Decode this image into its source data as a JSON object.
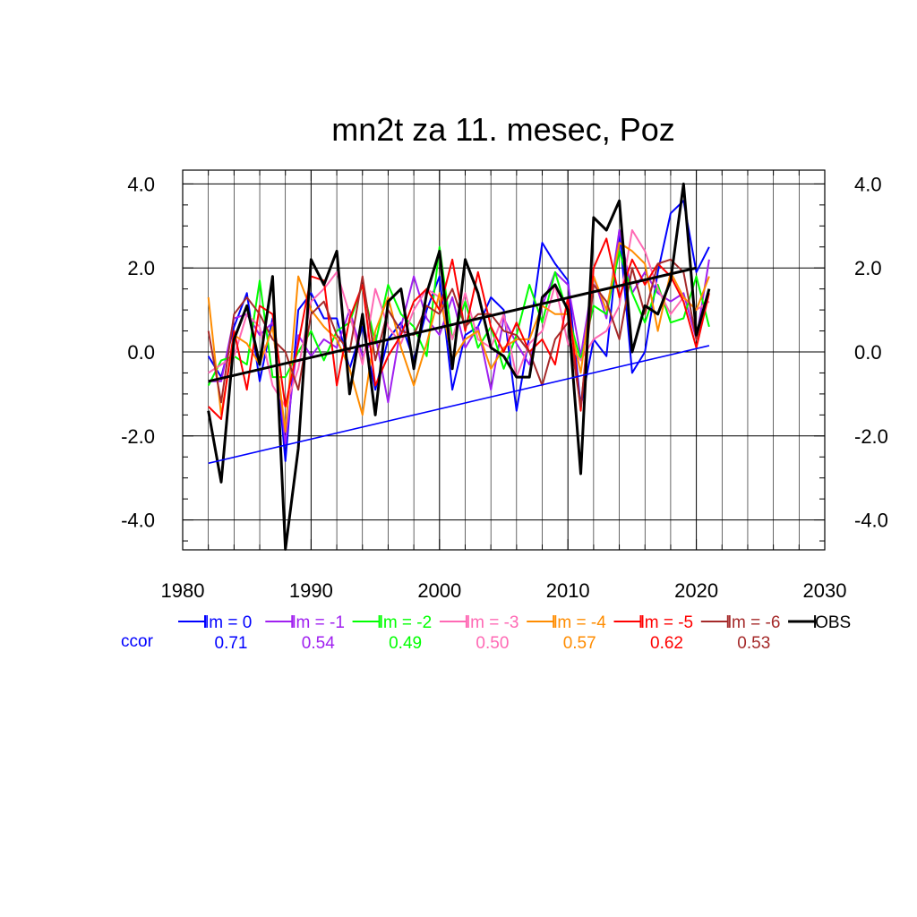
{
  "chart_data": {
    "type": "line",
    "title": "mn2t za 11. mesec, Poz",
    "xlabel": "",
    "ylabel": "",
    "xlim": [
      1980,
      2030
    ],
    "ylim": [
      -4.7,
      4.2
    ],
    "x_ticks": [
      "1980",
      "1990",
      "2000",
      "2010",
      "2020",
      "2030"
    ],
    "y_ticks": [
      "4.0",
      "2.0",
      "0.0",
      "-2.0",
      "-4.0"
    ],
    "y_tick_values": [
      4,
      2,
      0,
      -2,
      -4
    ],
    "grid": true,
    "legend_position": "bottom",
    "x": [
      1982,
      1983,
      1984,
      1985,
      1986,
      1987,
      1988,
      1989,
      1990,
      1991,
      1992,
      1993,
      1994,
      1995,
      1996,
      1997,
      1998,
      1999,
      2000,
      2001,
      2002,
      2003,
      2004,
      2005,
      2006,
      2007,
      2008,
      2009,
      2010,
      2011,
      2012,
      2013,
      2014,
      2015,
      2016,
      2017,
      2018,
      2019,
      2020,
      2021
    ],
    "series": [
      {
        "name": "lm = 0",
        "color": "#0000ff",
        "ccor": "0.71",
        "values": [
          -0.1,
          -0.6,
          0.6,
          1.4,
          -0.7,
          0.8,
          -2.6,
          1.0,
          1.4,
          0.8,
          0.8,
          -0.4,
          0.6,
          -0.9,
          0.3,
          0.7,
          -0.2,
          1.0,
          1.8,
          -0.9,
          0.4,
          0.6,
          1.3,
          1.0,
          -1.4,
          0.4,
          2.6,
          2.1,
          1.7,
          -1.3,
          0.3,
          -0.1,
          2.9,
          -0.5,
          0.0,
          1.9,
          3.3,
          3.6,
          1.9,
          2.5
        ]
      },
      {
        "name": "lm = -1",
        "color": "#a020f0",
        "ccor": "0.54",
        "values": [
          -0.7,
          -0.7,
          0.8,
          0.9,
          0.4,
          0.7,
          -2.2,
          0.4,
          -0.1,
          0.3,
          0.1,
          1.0,
          -0.1,
          0.4,
          -1.2,
          0.6,
          1.8,
          0.8,
          0.4,
          1.3,
          0.1,
          0.6,
          -0.9,
          0.8,
          0.2,
          -0.3,
          1.1,
          1.9,
          1.6,
          -0.1,
          1.8,
          0.8,
          2.9,
          1.4,
          1.9,
          1.4,
          1.2,
          1.4,
          0.3,
          2.2
        ]
      },
      {
        "name": "lm = -2",
        "color": "#00ff00",
        "ccor": "0.49",
        "values": [
          -0.8,
          -0.2,
          -0.1,
          -0.3,
          1.7,
          -0.6,
          -0.6,
          0.0,
          0.5,
          -0.2,
          0.5,
          0.7,
          1.6,
          0.2,
          1.6,
          0.9,
          0.6,
          -0.1,
          2.5,
          0.3,
          1.2,
          0.1,
          0.6,
          -0.4,
          0.4,
          1.6,
          0.7,
          1.9,
          0.9,
          -0.2,
          1.1,
          0.9,
          2.4,
          1.4,
          0.7,
          1.6,
          0.7,
          0.8,
          1.8,
          0.6
        ]
      },
      {
        "name": "lm = -3",
        "color": "#ff69b4",
        "ccor": "0.50",
        "values": [
          -0.5,
          -0.3,
          -0.1,
          0.9,
          0.6,
          -0.8,
          -1.3,
          -0.4,
          1.2,
          1.5,
          1.9,
          0.9,
          -0.3,
          1.5,
          0.6,
          0.2,
          1.0,
          1.5,
          1.3,
          0.3,
          1.4,
          0.3,
          0.1,
          0.9,
          -0.6,
          0.2,
          0.5,
          1.6,
          0.2,
          -0.2,
          0.3,
          0.5,
          1.1,
          2.9,
          2.4,
          1.5,
          0.9,
          1.3,
          1.0,
          1.2
        ]
      },
      {
        "name": "lm = -4",
        "color": "#ff8c00",
        "ccor": "0.57",
        "values": [
          1.3,
          -1.5,
          0.4,
          0.2,
          -0.3,
          0.6,
          -1.9,
          1.8,
          1.0,
          0.6,
          0.3,
          -0.4,
          -1.5,
          0.5,
          1.3,
          0.1,
          -0.8,
          0.2,
          1.4,
          -0.2,
          0.3,
          0.5,
          -0.4,
          0.1,
          0.3,
          0.3,
          1.1,
          0.9,
          0.9,
          -0.5,
          1.8,
          1.0,
          2.6,
          2.4,
          2.1,
          0.5,
          1.9,
          1.3,
          1.0,
          1.8
        ]
      },
      {
        "name": "lm = -5",
        "color": "#ff0000",
        "ccor": "0.62",
        "values": [
          -1.3,
          -1.6,
          0.5,
          -0.9,
          1.1,
          0.9,
          -1.3,
          0.2,
          1.8,
          1.7,
          -0.8,
          0.8,
          1.6,
          -0.8,
          -0.1,
          0.4,
          1.2,
          1.5,
          1.0,
          2.2,
          0.5,
          1.9,
          0.6,
          0.0,
          0.7,
          0.0,
          0.3,
          -0.3,
          1.3,
          -1.4,
          2.0,
          2.7,
          1.3,
          2.2,
          1.6,
          2.1,
          1.8,
          1.2,
          0.1,
          1.4
        ]
      },
      {
        "name": "lm = -6",
        "color": "#a52a2a",
        "ccor": "0.53",
        "values": [
          0.5,
          -1.2,
          0.9,
          1.3,
          0.9,
          0.3,
          0.0,
          -0.9,
          0.9,
          1.2,
          0.4,
          0.0,
          1.8,
          -0.2,
          1.0,
          0.5,
          0.4,
          1.1,
          0.9,
          1.5,
          0.6,
          0.9,
          0.9,
          0.5,
          0.4,
          0.0,
          -0.8,
          0.3,
          0.7,
          -1.3,
          1.6,
          1.2,
          0.3,
          2.0,
          0.9,
          2.1,
          2.2,
          1.9,
          0.3,
          1.5
        ]
      },
      {
        "name": "OBS",
        "color": "#000000",
        "ccor": "",
        "values": [
          -1.4,
          -3.1,
          0.3,
          1.1,
          -0.3,
          1.8,
          -4.7,
          -2.3,
          2.2,
          1.6,
          2.4,
          -1.0,
          0.9,
          -1.5,
          1.2,
          1.5,
          -0.4,
          1.4,
          2.4,
          -0.4,
          2.2,
          1.4,
          0.1,
          -0.1,
          -0.6,
          -0.6,
          1.3,
          1.6,
          1.0,
          -2.9,
          3.2,
          2.9,
          3.6,
          0.0,
          1.1,
          0.9,
          1.7,
          4.0,
          0.4,
          1.5
        ]
      }
    ],
    "trend_lines": [
      {
        "name": "OBS trend",
        "color": "#000000",
        "x": [
          1982,
          2020
        ],
        "y": [
          -0.7,
          2.0
        ]
      },
      {
        "name": "lm = 0 trend",
        "color": "#0000ff",
        "x": [
          1982,
          2021
        ],
        "y": [
          -2.65,
          0.15
        ]
      }
    ],
    "ccor_label": "ccor"
  }
}
